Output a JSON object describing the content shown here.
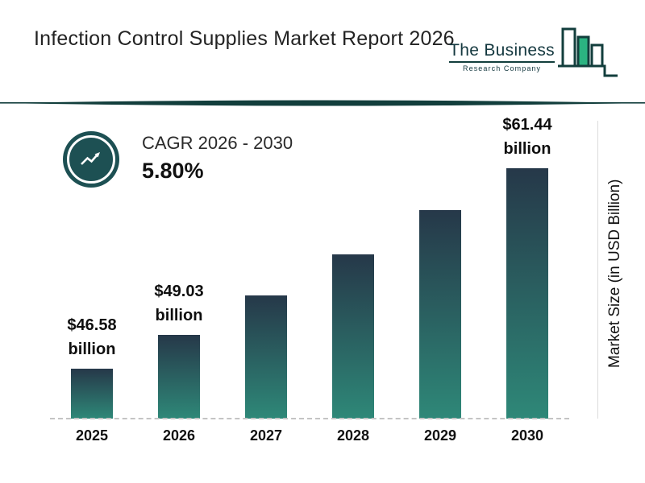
{
  "header": {
    "title": "Infection Control Supplies Market Report 2026",
    "logo": {
      "line1": "The Business",
      "line2": "Research Company"
    }
  },
  "cagr": {
    "label": "CAGR 2026 - 2030",
    "value": "5.80%"
  },
  "chart_data": {
    "type": "bar",
    "title": "Infection Control Supplies Market Report 2026",
    "categories": [
      "2025",
      "2026",
      "2027",
      "2028",
      "2029",
      "2030"
    ],
    "values": [
      46.58,
      49.03,
      51.87,
      54.88,
      58.06,
      61.44
    ],
    "estimated_indices": [
      2,
      3,
      4
    ],
    "data_labels": [
      "$46.58 billion",
      "$49.03 billion",
      null,
      null,
      null,
      "$61.44 billion"
    ],
    "unit": "USD Billion",
    "xlabel": "",
    "ylabel": "Market Size (in USD Billion)",
    "cagr": "5.80%",
    "cagr_period": "2026 - 2030",
    "baseline_style": "dashed",
    "legend": "none",
    "colors": {
      "bar_gradient_top": "#263849",
      "bar_gradient_bottom": "#2E8878",
      "accent_dark_teal": "#123E3C",
      "logo_green": "#2BB381"
    }
  }
}
